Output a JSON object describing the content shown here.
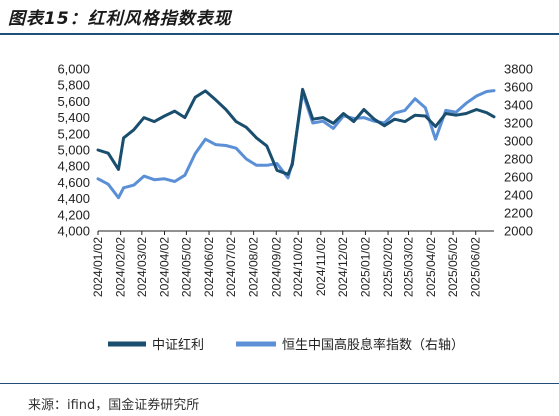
{
  "header": {
    "title": "图表15：红利风格指数表现"
  },
  "footer": {
    "source": "来源：ifind，国金证券研究所"
  },
  "chart_data": {
    "type": "line",
    "x": [
      "2024/01/02",
      "2024/01/16",
      "2024/01/30",
      "2024/02/06",
      "2024/02/20",
      "2024/03/05",
      "2024/03/19",
      "2024/04/02",
      "2024/04/16",
      "2024/04/30",
      "2024/05/14",
      "2024/05/28",
      "2024/06/11",
      "2024/06/25",
      "2024/07/09",
      "2024/07/23",
      "2024/08/06",
      "2024/08/20",
      "2024/09/03",
      "2024/09/18",
      "2024/09/24",
      "2024/10/08",
      "2024/10/22",
      "2024/11/05",
      "2024/11/19",
      "2024/12/03",
      "2024/12/17",
      "2024/12/31",
      "2025/01/14",
      "2025/01/28",
      "2025/02/11",
      "2025/02/25",
      "2025/03/11",
      "2025/03/25",
      "2025/04/08",
      "2025/04/22",
      "2025/05/06",
      "2025/05/20",
      "2025/06/03",
      "2025/06/17",
      "2025/06/27"
    ],
    "x_ticks": [
      "2024/01/02",
      "2024/02/02",
      "2024/03/02",
      "2024/04/02",
      "2024/05/02",
      "2024/06/02",
      "2024/07/02",
      "2024/08/02",
      "2024/09/02",
      "2024/10/02",
      "2024/11/02",
      "2024/12/02",
      "2025/01/02",
      "2025/02/02",
      "2025/03/02",
      "2025/04/02",
      "2025/05/02",
      "2025/06/02"
    ],
    "series": [
      {
        "name": "中证红利",
        "axis": "left",
        "color": "#1a4e6e",
        "values": [
          5000,
          4960,
          4760,
          5150,
          5250,
          5400,
          5350,
          5420,
          5480,
          5400,
          5650,
          5730,
          5620,
          5500,
          5350,
          5280,
          5150,
          5050,
          4750,
          4700,
          4820,
          5750,
          5380,
          5400,
          5330,
          5450,
          5350,
          5500,
          5380,
          5300,
          5380,
          5350,
          5430,
          5420,
          5290,
          5450,
          5430,
          5450,
          5500,
          5460,
          5410
        ]
      },
      {
        "name": "恒生中国高股息率指数（右轴）",
        "axis": "right",
        "color": "#5b8fd6",
        "values": [
          2580,
          2520,
          2370,
          2480,
          2510,
          2610,
          2570,
          2580,
          2550,
          2620,
          2860,
          3020,
          2960,
          2950,
          2920,
          2800,
          2730,
          2730,
          2750,
          2590,
          2760,
          3540,
          3200,
          3220,
          3140,
          3280,
          3250,
          3260,
          3220,
          3200,
          3310,
          3340,
          3470,
          3370,
          3020,
          3340,
          3320,
          3420,
          3500,
          3550,
          3560
        ]
      }
    ],
    "ylim_left": [
      4000,
      6000
    ],
    "yticks_left": [
      "4,000",
      "4,200",
      "4,400",
      "4,600",
      "4,800",
      "5,000",
      "5,200",
      "5,400",
      "5,600",
      "5,800",
      "6,000"
    ],
    "ylim_right": [
      2000,
      3800
    ],
    "yticks_right": [
      "2000",
      "2200",
      "2400",
      "2600",
      "2800",
      "3000",
      "3200",
      "3400",
      "3600",
      "3800"
    ],
    "legend": {
      "placement": "bottom",
      "entries": [
        "中证红利",
        "恒生中国高股息率指数（右轴）"
      ]
    },
    "grid": false
  }
}
